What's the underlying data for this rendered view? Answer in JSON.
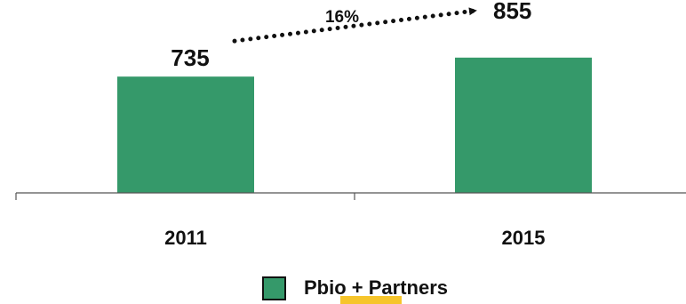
{
  "chart_data": {
    "type": "bar",
    "categories": [
      "2011",
      "2015"
    ],
    "series": [
      {
        "name": "Pbio + Partners",
        "values": [
          735,
          855
        ],
        "data_labels": [
          "735",
          "855"
        ]
      }
    ],
    "annotation": {
      "text": "16%",
      "from": "2011",
      "to": "2015",
      "style": "dotted-arrow"
    },
    "legend": {
      "entries": [
        "Pbio + Partners"
      ],
      "placement": "bottom-center"
    },
    "ylim": [
      0,
      1000
    ],
    "grid": false,
    "colors": {
      "bar": "#35996a",
      "text": "#111111",
      "axis": "#555555",
      "highlight": "#f6c52b"
    }
  }
}
